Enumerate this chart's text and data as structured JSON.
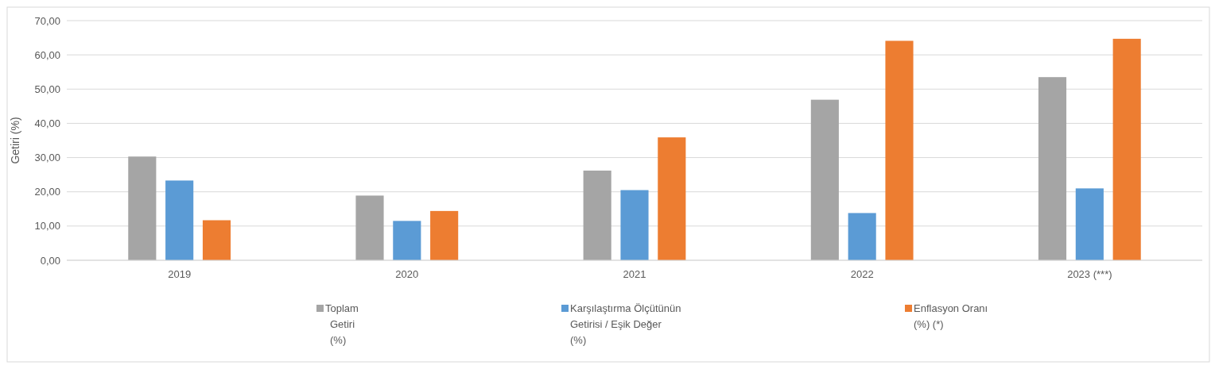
{
  "chart_data": {
    "type": "bar",
    "ylabel": "Getiri (%)",
    "categories": [
      "2019",
      "2020",
      "2021",
      "2022",
      "2023 (***)"
    ],
    "series": [
      {
        "name": "Toplam Getiri (%)",
        "color": "#a5a5a5",
        "values": [
          30.3,
          18.9,
          26.2,
          46.9,
          53.5
        ]
      },
      {
        "name": "Karşılaştırma Ölçütünün Getirisi / Eşik Değer (%)",
        "color": "#5b9bd5",
        "values": [
          23.3,
          11.5,
          20.5,
          13.8,
          21.0
        ]
      },
      {
        "name": "Enflasyon Oranı (%) (*)",
        "color": "#ed7d31",
        "values": [
          11.7,
          14.4,
          35.9,
          64.1,
          64.7
        ]
      }
    ],
    "ylim": [
      0,
      70
    ],
    "yticks": [
      {
        "value": 0,
        "label": "0,00"
      },
      {
        "value": 10,
        "label": "10,00"
      },
      {
        "value": 20,
        "label": "20,00"
      },
      {
        "value": 30,
        "label": "30,00"
      },
      {
        "value": 40,
        "label": "40,00"
      },
      {
        "value": 50,
        "label": "50,00"
      },
      {
        "value": 60,
        "label": "60,00"
      },
      {
        "value": 70,
        "label": "70,00"
      }
    ],
    "grid": true,
    "legend": "bottom"
  }
}
